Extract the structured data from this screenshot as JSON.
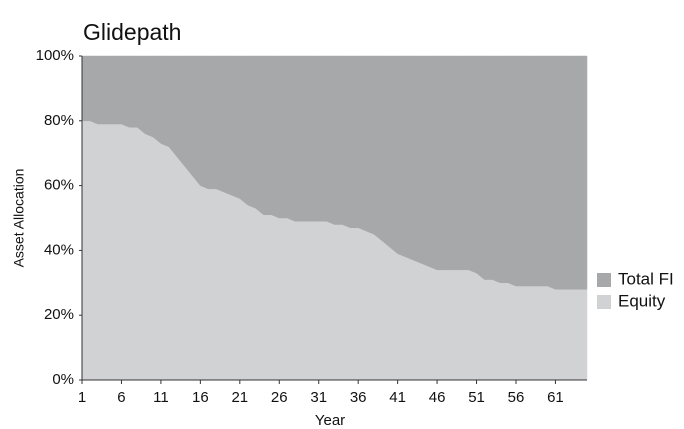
{
  "chart_data": {
    "type": "stacked_area",
    "title": "Glidepath",
    "x_label": "Year",
    "y_label": "Asset Allocation",
    "x": [
      1,
      2,
      3,
      4,
      5,
      6,
      7,
      8,
      9,
      10,
      11,
      12,
      13,
      14,
      15,
      16,
      17,
      18,
      19,
      20,
      21,
      22,
      23,
      24,
      25,
      26,
      27,
      28,
      29,
      30,
      31,
      32,
      33,
      34,
      35,
      36,
      37,
      38,
      39,
      40,
      41,
      42,
      43,
      44,
      45,
      46,
      47,
      48,
      49,
      50,
      51,
      52,
      53,
      54,
      55,
      56,
      57,
      58,
      59,
      60,
      61,
      62,
      63,
      64,
      65
    ],
    "series": [
      {
        "name": "Equity",
        "color": "#d1d2d4",
        "values": [
          80,
          80,
          79,
          79,
          79,
          79,
          78,
          78,
          76,
          75,
          73,
          72,
          69,
          66,
          63,
          60,
          59,
          59,
          58,
          57,
          56,
          54,
          53,
          51,
          51,
          50,
          50,
          49,
          49,
          49,
          49,
          49,
          48,
          48,
          47,
          47,
          46,
          45,
          43,
          41,
          39,
          38,
          37,
          36,
          35,
          34,
          34,
          34,
          34,
          34,
          33,
          31,
          31,
          30,
          30,
          29,
          29,
          29,
          29,
          29,
          28,
          28,
          28,
          28,
          28
        ]
      },
      {
        "name": "Total FI",
        "color": "#a7a8aa",
        "values": [
          20,
          20,
          21,
          21,
          21,
          21,
          22,
          22,
          24,
          25,
          27,
          28,
          31,
          34,
          37,
          40,
          41,
          41,
          42,
          43,
          44,
          46,
          47,
          49,
          49,
          50,
          50,
          51,
          51,
          51,
          51,
          51,
          52,
          52,
          53,
          53,
          54,
          55,
          57,
          59,
          61,
          62,
          63,
          64,
          65,
          66,
          66,
          66,
          66,
          66,
          67,
          69,
          69,
          70,
          70,
          71,
          71,
          71,
          71,
          71,
          72,
          72,
          72,
          72,
          72
        ]
      }
    ],
    "xlim": [
      1,
      65
    ],
    "xticks": [
      1,
      6,
      11,
      16,
      21,
      26,
      31,
      36,
      41,
      46,
      51,
      56,
      61
    ],
    "ylim": [
      0,
      100
    ],
    "yticks": [
      {
        "value": 0,
        "label": "0%"
      },
      {
        "value": 20,
        "label": "20%"
      },
      {
        "value": 40,
        "label": "40%"
      },
      {
        "value": 60,
        "label": "60%"
      },
      {
        "value": 80,
        "label": "80%"
      },
      {
        "value": 100,
        "label": "100%"
      }
    ],
    "legend": "right"
  }
}
